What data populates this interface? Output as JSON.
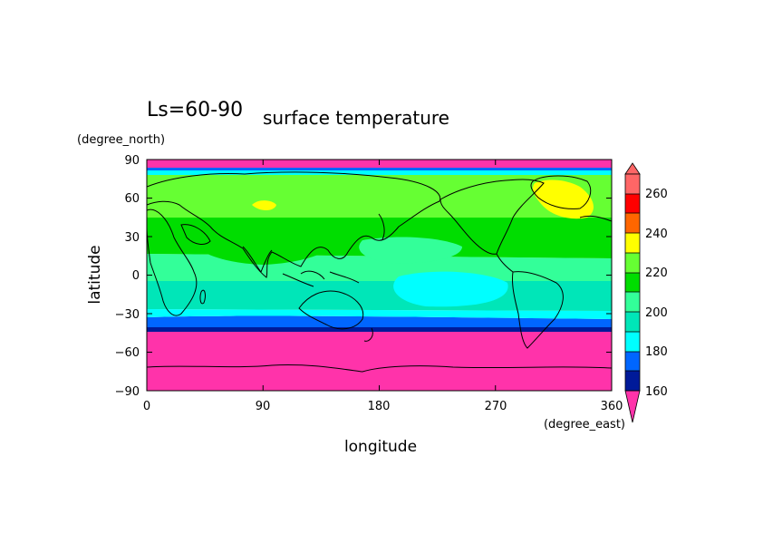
{
  "title_left": "Ls=60-90",
  "title_main": "surface temperature",
  "y_axis": {
    "label": "latitude",
    "units": "(degree_north)",
    "ticks": [
      "90",
      "60",
      "30",
      "0",
      "−30",
      "−60",
      "−90"
    ],
    "range": [
      -90,
      90
    ]
  },
  "x_axis": {
    "label": "longitude",
    "units": "(degree_east)",
    "ticks": [
      "0",
      "90",
      "180",
      "270",
      "360"
    ],
    "range": [
      0,
      360
    ]
  },
  "colorbar": {
    "labels": [
      "160",
      "180",
      "200",
      "220",
      "240",
      "260"
    ],
    "levels": [
      160,
      170,
      180,
      190,
      200,
      210,
      220,
      230,
      240,
      250,
      260
    ],
    "colors": {
      "below_160": "#ff33aa",
      "160_170": "#001a99",
      "170_180": "#0066ff",
      "180_190": "#00ffff",
      "190_200": "#00e6b8",
      "200_210": "#33ff99",
      "210_220": "#00dd00",
      "220_230": "#66ff33",
      "230_240": "#ffff00",
      "240_250": "#ff6600",
      "250_260": "#ff0000",
      "above_260": "#ff6666"
    }
  },
  "map": {
    "type": "filled contour",
    "projection": "cylindrical equidistant"
  }
}
